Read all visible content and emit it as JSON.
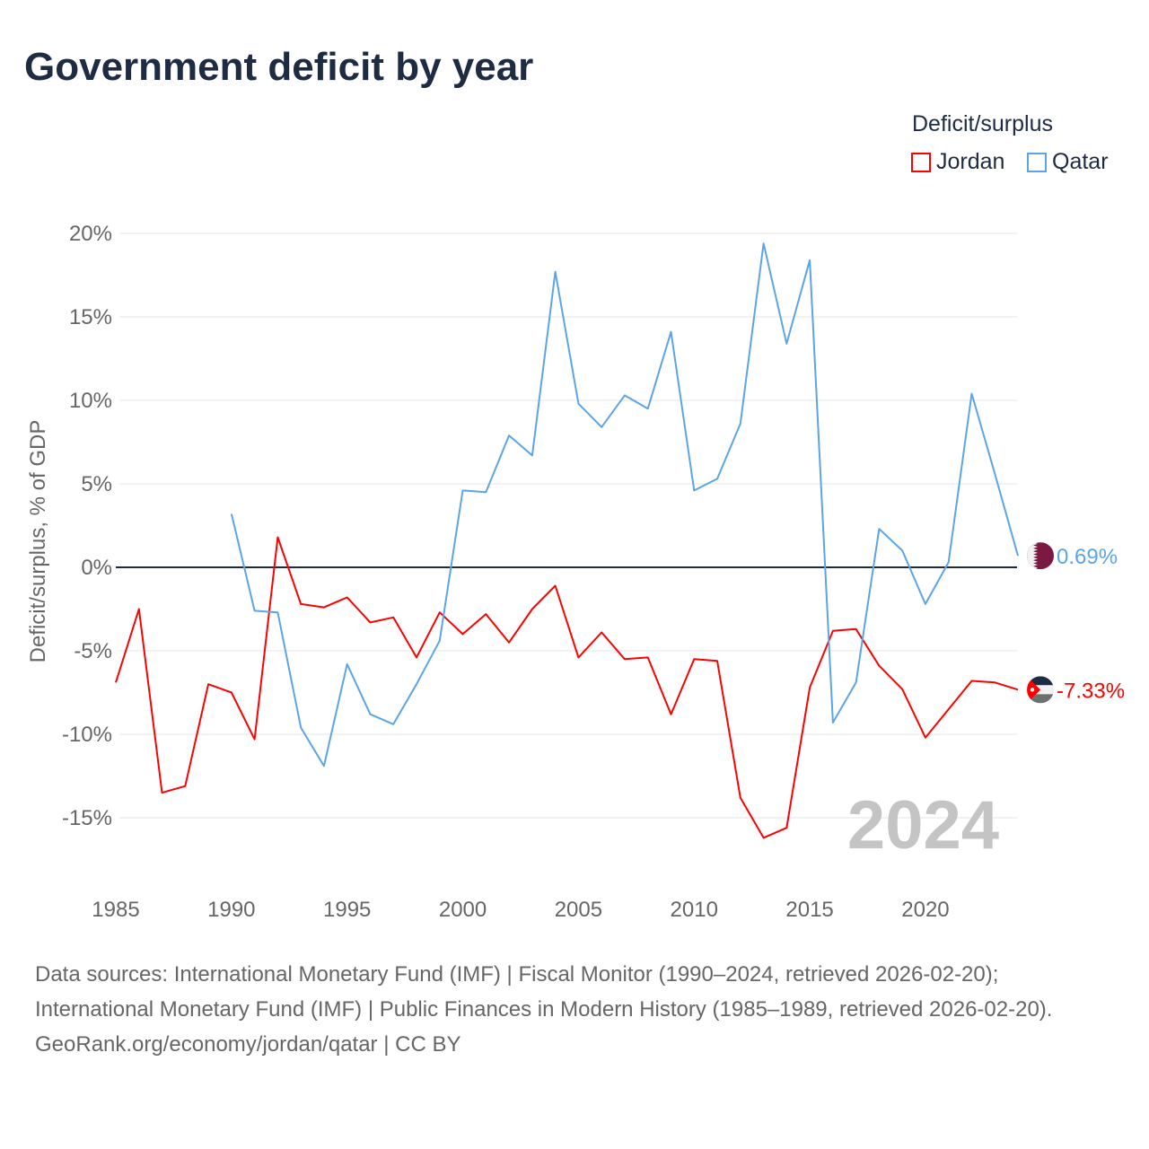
{
  "chart_data": {
    "type": "line",
    "title": "Government deficit by year",
    "ylabel": "Deficit/surplus, % of GDP",
    "xlabel": "",
    "xlim": [
      1985,
      2024
    ],
    "ylim": [
      -18,
      20
    ],
    "x_ticks": [
      1985,
      1990,
      1995,
      2000,
      2005,
      2010,
      2015,
      2020
    ],
    "x_tick_labels": [
      "1985",
      "1990",
      "1995",
      "2000",
      "2005",
      "2010",
      "2015",
      "2020"
    ],
    "y_ticks": [
      20,
      15,
      10,
      5,
      0,
      -5,
      -10,
      -15
    ],
    "y_tick_labels": [
      "20%",
      "15%",
      "10%",
      "5%",
      "0%",
      "-5%",
      "-10%",
      "-15%"
    ],
    "grid": true,
    "legend": {
      "title": "Deficit/surplus",
      "placement": "top-right"
    },
    "year_watermark": "2024",
    "series": [
      {
        "name": "Jordan",
        "color": "#ff0000",
        "end_label": "-7.33%",
        "flag": "jordan-flag",
        "x": [
          1985,
          1986,
          1987,
          1988,
          1989,
          1990,
          1991,
          1992,
          1993,
          1994,
          1995,
          1996,
          1997,
          1998,
          1999,
          2000,
          2001,
          2002,
          2003,
          2004,
          2005,
          2006,
          2007,
          2008,
          2009,
          2010,
          2011,
          2012,
          2013,
          2014,
          2015,
          2016,
          2017,
          2018,
          2019,
          2020,
          2021,
          2022,
          2023,
          2024
        ],
        "values": [
          -6.9,
          -2.5,
          -13.5,
          -13.1,
          -7.0,
          -7.5,
          -10.3,
          1.8,
          -2.2,
          -2.4,
          -1.8,
          -3.3,
          -3.0,
          -5.4,
          -2.7,
          -4.0,
          -2.8,
          -4.5,
          -2.5,
          -1.1,
          -5.4,
          -3.9,
          -5.5,
          -5.4,
          -8.8,
          -5.5,
          -5.6,
          -13.8,
          -16.2,
          -15.6,
          -7.2,
          -3.8,
          -3.7,
          -5.9,
          -7.3,
          -10.2,
          -8.5,
          -6.8,
          -6.9,
          -7.33
        ]
      },
      {
        "name": "Qatar",
        "color": "#5ba4e6",
        "end_label": "0.69%",
        "flag": "qatar-flag",
        "x": [
          1990,
          1991,
          1992,
          1993,
          1994,
          1995,
          1996,
          1997,
          1998,
          1999,
          2000,
          2001,
          2002,
          2003,
          2004,
          2005,
          2006,
          2007,
          2008,
          2009,
          2010,
          2011,
          2012,
          2013,
          2014,
          2015,
          2016,
          2017,
          2018,
          2019,
          2020,
          2021,
          2022,
          2023,
          2024
        ],
        "values": [
          3.2,
          -2.6,
          -2.7,
          -9.6,
          -11.9,
          -5.8,
          -8.8,
          -9.4,
          -7.0,
          -4.4,
          4.6,
          4.5,
          7.9,
          6.7,
          17.7,
          9.8,
          8.4,
          10.3,
          9.5,
          14.1,
          4.6,
          5.3,
          8.6,
          19.4,
          13.4,
          18.4,
          -9.3,
          -6.9,
          2.3,
          1.0,
          -2.2,
          0.3,
          10.4,
          5.6,
          0.69
        ]
      }
    ]
  },
  "footer": {
    "sources": "Data sources: International Monetary Fund (IMF) | Fiscal Monitor (1990–2024, retrieved 2026-02-20); International Monetary Fund (IMF) | Public Finances in Modern History (1985–1989, retrieved 2026-02-20).",
    "credit": "GeoRank.org/economy/jordan/qatar | CC BY"
  }
}
